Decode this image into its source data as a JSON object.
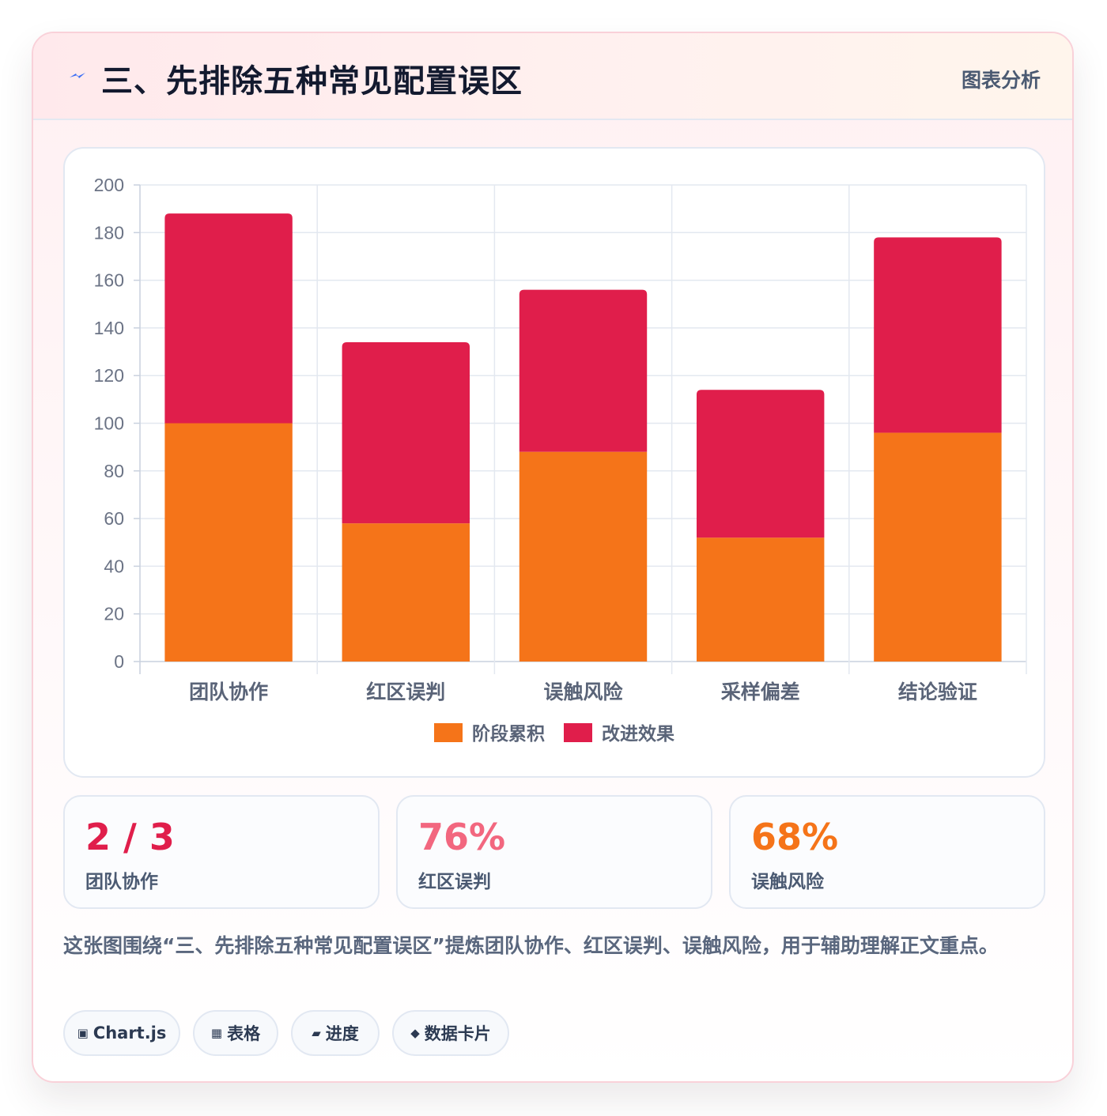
{
  "header": {
    "icon": "lightning-icon",
    "title": "三、先排除五种常见配置误区",
    "right_label": "图表分析"
  },
  "chart_data": {
    "type": "bar",
    "stacked": true,
    "title": "",
    "xlabel": "",
    "ylabel": "",
    "categories": [
      "团队协作",
      "红区误判",
      "误触风险",
      "采样偏差",
      "结论验证"
    ],
    "series": [
      {
        "name": "阶段累积",
        "color": "#f57419",
        "values": [
          100,
          58,
          88,
          52,
          96
        ]
      },
      {
        "name": "改进效果",
        "color": "#e01e4b",
        "values": [
          88,
          76,
          68,
          62,
          82
        ]
      }
    ],
    "ylim": [
      0,
      200
    ],
    "yticks": [
      "0",
      "20",
      "40",
      "60",
      "80",
      "100",
      "120",
      "140",
      "160",
      "180",
      "200"
    ],
    "grid": true,
    "legend": "bottom"
  },
  "stats": [
    {
      "value": "2 / 3",
      "label": "团队协作",
      "color": "#e01e4b"
    },
    {
      "value": "76%",
      "label": "红区误判",
      "color": "#f2677f"
    },
    {
      "value": "68%",
      "label": "误触风险",
      "color": "#f57419"
    }
  ],
  "description": "这张图围绕“三、先排除五种常见配置误区”提炼团队协作、红区误判、误触风险，用于辅助理解正文重点。",
  "tags": [
    {
      "icon": "▣",
      "label": "Chart.js"
    },
    {
      "icon": "▦",
      "label": "表格"
    },
    {
      "icon": "▰",
      "label": "进度"
    },
    {
      "icon": "◆",
      "label": "数据卡片"
    }
  ]
}
